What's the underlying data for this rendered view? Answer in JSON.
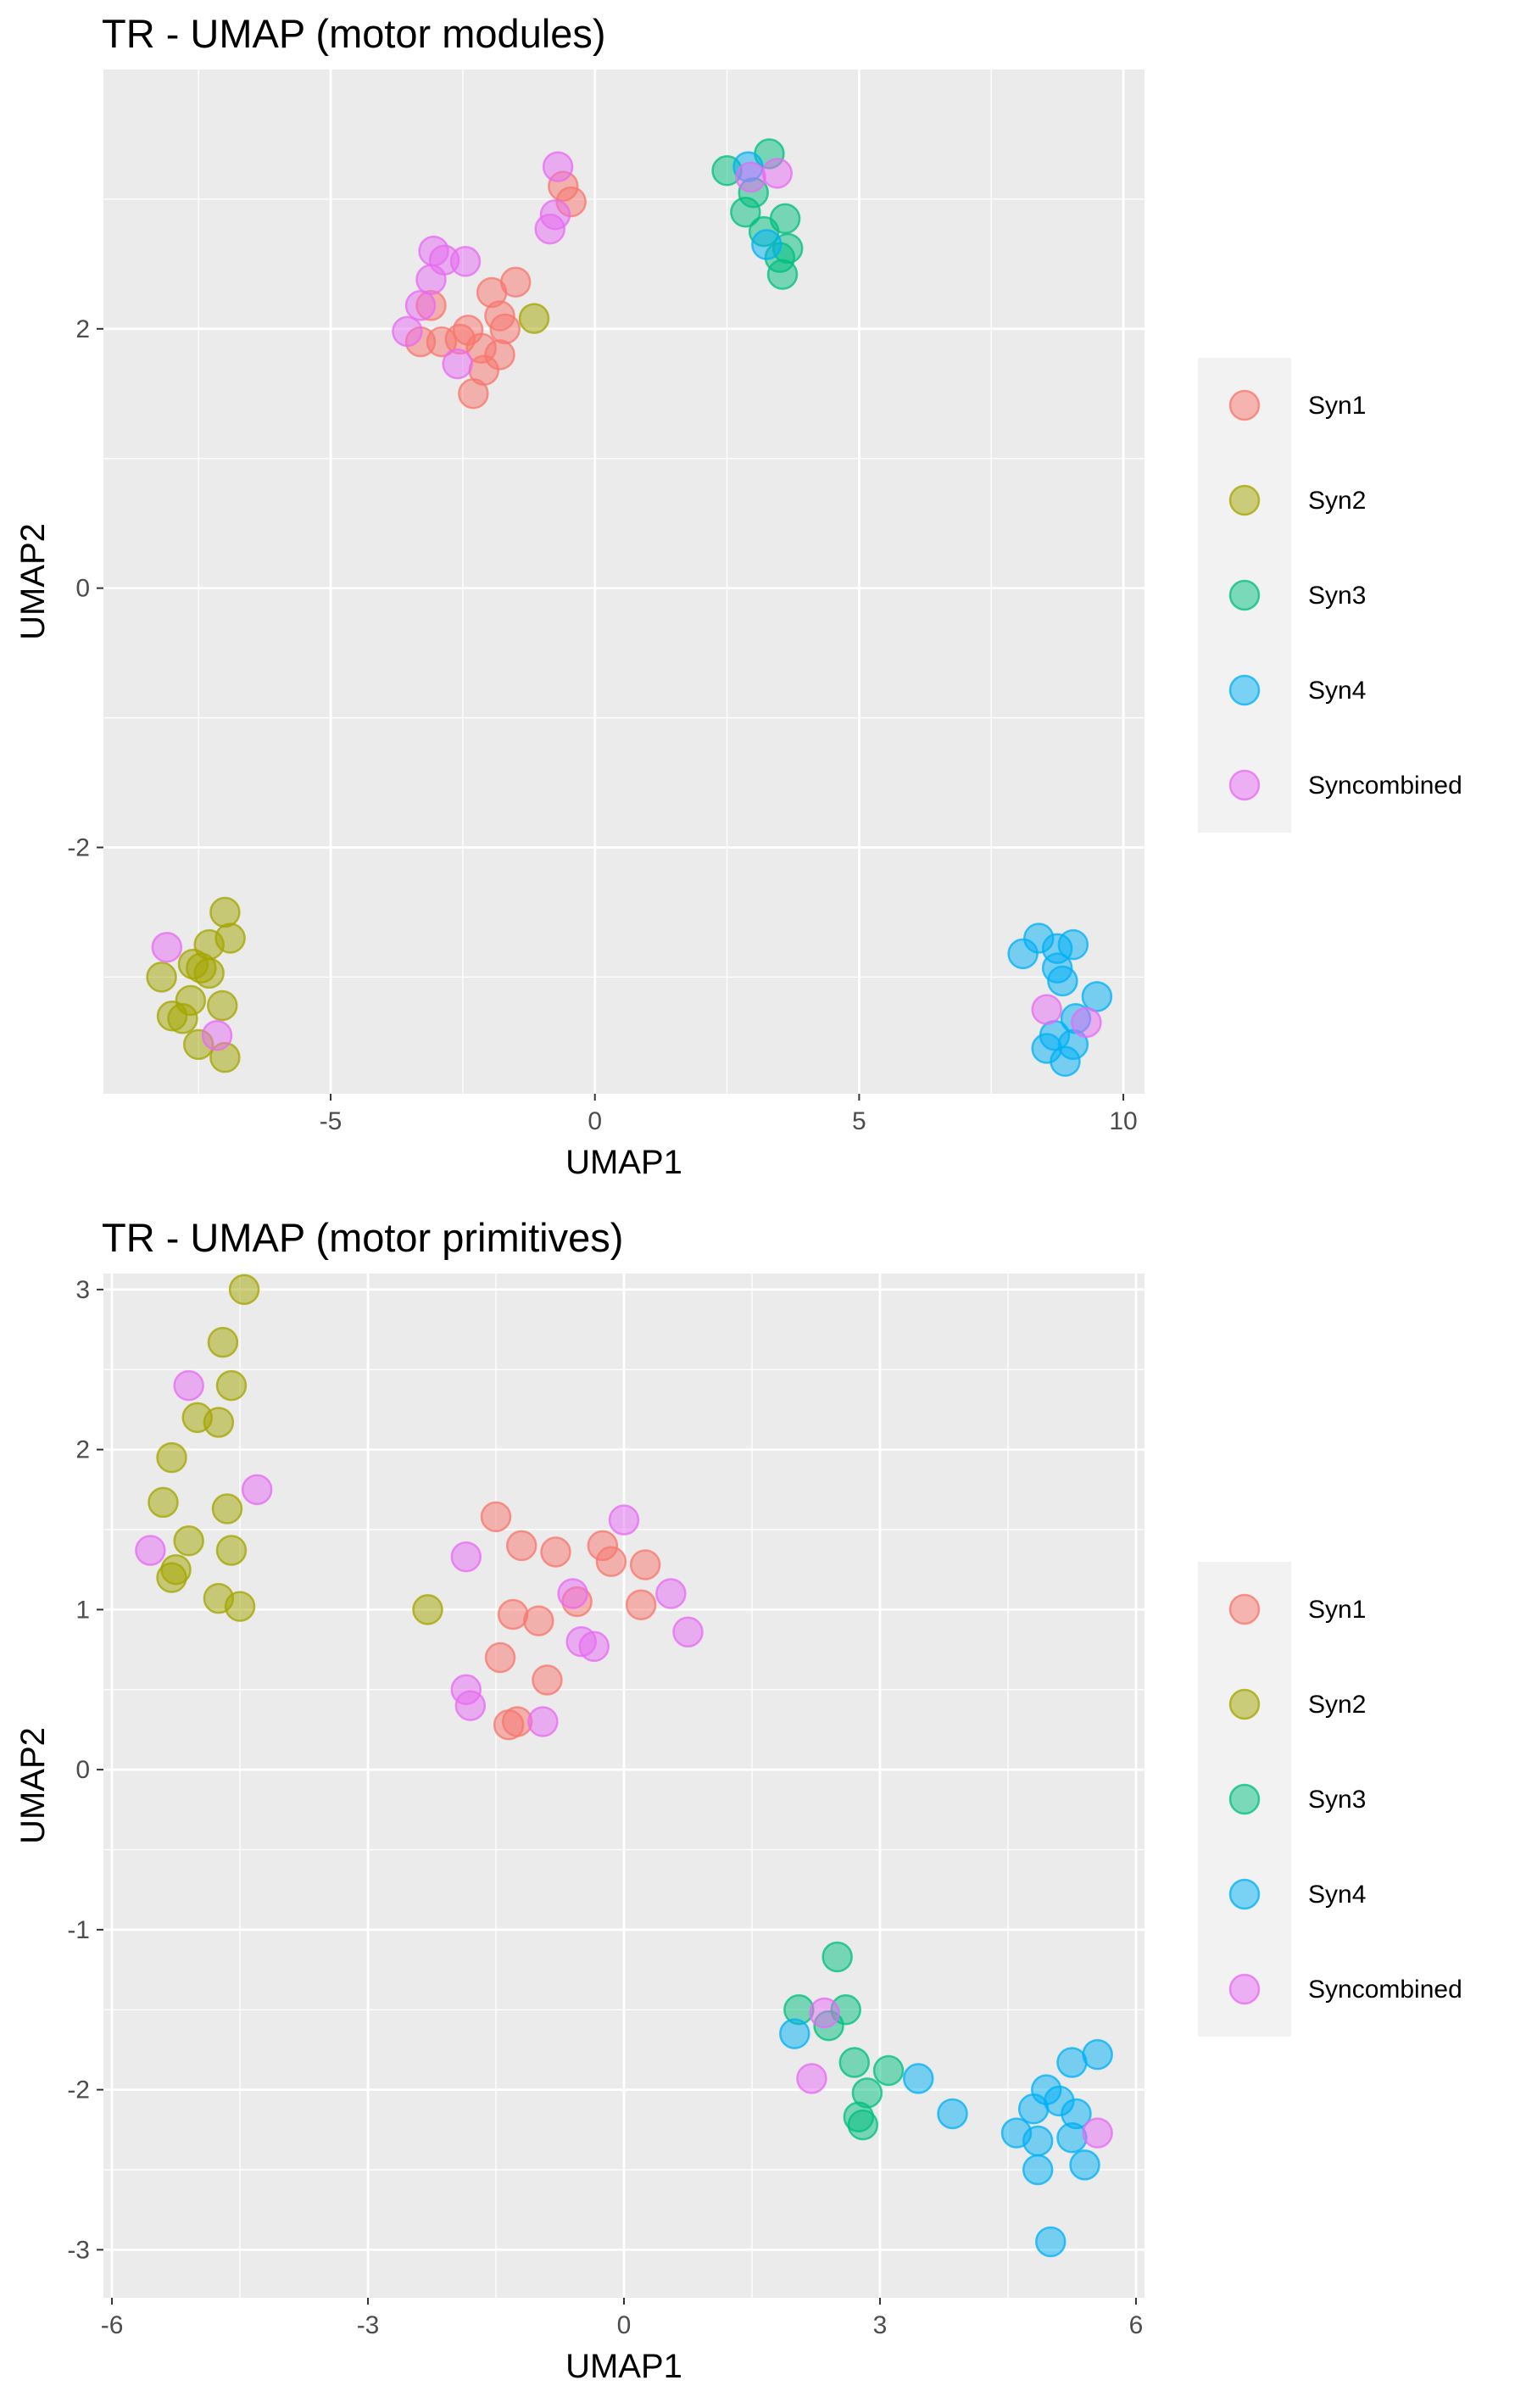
{
  "chart_data": [
    {
      "type": "scatter",
      "title": "TR - UMAP (motor modules)",
      "xlabel": "UMAP1",
      "ylabel": "UMAP2",
      "xlim": [
        -9.3,
        10.4
      ],
      "ylim": [
        -3.9,
        4.0
      ],
      "xticks": [
        -5,
        0,
        5,
        10
      ],
      "yticks": [
        -2,
        0,
        2
      ],
      "xtick_labels": [
        "-5",
        "0",
        "5",
        "10"
      ],
      "ytick_labels": [
        "-2",
        "0",
        "2"
      ],
      "grid": true,
      "legend_position": "right",
      "series": [
        {
          "name": "Syn1",
          "color": "#F8766D",
          "points": [
            [
              -0.45,
              2.98
            ],
            [
              -0.6,
              3.1
            ],
            [
              -1.5,
              2.36
            ],
            [
              -1.95,
              2.28
            ],
            [
              -1.8,
              2.1
            ],
            [
              -1.7,
              2.0
            ],
            [
              -2.4,
              1.99
            ],
            [
              -2.55,
              1.92
            ],
            [
              -2.9,
              1.9
            ],
            [
              -3.3,
              1.9
            ],
            [
              -2.15,
              1.85
            ],
            [
              -1.8,
              1.8
            ],
            [
              -2.1,
              1.68
            ],
            [
              -2.3,
              1.5
            ],
            [
              -3.1,
              2.18
            ]
          ]
        },
        {
          "name": "Syn2",
          "color": "#A3A500",
          "points": [
            [
              -1.15,
              2.08
            ],
            [
              -7.0,
              -2.5
            ],
            [
              -6.9,
              -2.7
            ],
            [
              -7.3,
              -2.75
            ],
            [
              -7.6,
              -2.9
            ],
            [
              -7.3,
              -2.97
            ],
            [
              -7.45,
              -2.93
            ],
            [
              -8.2,
              -3.0
            ],
            [
              -7.05,
              -3.22
            ],
            [
              -7.65,
              -3.18
            ],
            [
              -8.0,
              -3.3
            ],
            [
              -7.8,
              -3.32
            ],
            [
              -7.5,
              -3.52
            ],
            [
              -7.0,
              -3.62
            ]
          ]
        },
        {
          "name": "Syn3",
          "color": "#00BF7D",
          "points": [
            [
              2.5,
              3.22
            ],
            [
              3.3,
              3.35
            ],
            [
              3.0,
              3.05
            ],
            [
              2.85,
              2.9
            ],
            [
              3.6,
              2.85
            ],
            [
              3.2,
              2.75
            ],
            [
              3.65,
              2.62
            ],
            [
              3.5,
              2.55
            ],
            [
              3.55,
              2.42
            ]
          ]
        },
        {
          "name": "Syn4",
          "color": "#00B0F6",
          "points": [
            [
              2.9,
              3.25
            ],
            [
              3.25,
              2.65
            ],
            [
              8.4,
              -2.7
            ],
            [
              8.1,
              -2.82
            ],
            [
              9.05,
              -2.75
            ],
            [
              8.75,
              -2.78
            ],
            [
              8.75,
              -2.93
            ],
            [
              8.85,
              -3.03
            ],
            [
              9.5,
              -3.15
            ],
            [
              9.1,
              -3.32
            ],
            [
              8.7,
              -3.45
            ],
            [
              9.05,
              -3.52
            ],
            [
              8.55,
              -3.55
            ],
            [
              8.9,
              -3.65
            ]
          ]
        },
        {
          "name": "Syncombined",
          "color": "#E76BF3",
          "points": [
            [
              -0.7,
              3.25
            ],
            [
              -0.75,
              2.88
            ],
            [
              -0.85,
              2.77
            ],
            [
              -3.05,
              2.6
            ],
            [
              -2.85,
              2.53
            ],
            [
              -2.45,
              2.52
            ],
            [
              -3.1,
              2.38
            ],
            [
              -3.3,
              2.18
            ],
            [
              -3.55,
              1.98
            ],
            [
              -2.6,
              1.73
            ],
            [
              2.95,
              3.17
            ],
            [
              3.45,
              3.2
            ],
            [
              -8.1,
              -2.77
            ],
            [
              -7.15,
              -3.45
            ],
            [
              8.55,
              -3.25
            ],
            [
              9.3,
              -3.35
            ]
          ]
        }
      ]
    },
    {
      "type": "scatter",
      "title": "TR - UMAP (motor primitives)",
      "xlabel": "UMAP1",
      "ylabel": "UMAP2",
      "xlim": [
        -6.1,
        6.1
      ],
      "ylim": [
        -3.3,
        3.1
      ],
      "xticks": [
        -6,
        -3,
        0,
        3,
        6
      ],
      "yticks": [
        -3,
        -2,
        -1,
        0,
        1,
        2,
        3
      ],
      "xtick_labels": [
        "-6",
        "-3",
        "0",
        "3",
        "6"
      ],
      "ytick_labels": [
        "-3",
        "-2",
        "-1",
        "0",
        "1",
        "2",
        "3"
      ],
      "grid": true,
      "legend_position": "right",
      "series": [
        {
          "name": "Syn1",
          "color": "#F8766D",
          "points": [
            [
              -1.5,
              1.58
            ],
            [
              -1.2,
              1.4
            ],
            [
              -0.8,
              1.36
            ],
            [
              -0.25,
              1.4
            ],
            [
              -0.15,
              1.3
            ],
            [
              0.25,
              1.28
            ],
            [
              -0.55,
              1.05
            ],
            [
              -1.3,
              0.97
            ],
            [
              -1.0,
              0.93
            ],
            [
              0.2,
              1.03
            ],
            [
              -1.45,
              0.7
            ],
            [
              -0.9,
              0.56
            ],
            [
              -1.35,
              0.28
            ],
            [
              -1.25,
              0.3
            ]
          ]
        },
        {
          "name": "Syn2",
          "color": "#A3A500",
          "points": [
            [
              -4.45,
              3.0
            ],
            [
              -4.7,
              2.67
            ],
            [
              -4.6,
              2.4
            ],
            [
              -4.75,
              2.17
            ],
            [
              -5.0,
              2.2
            ],
            [
              -5.3,
              1.95
            ],
            [
              -5.4,
              1.67
            ],
            [
              -4.65,
              1.63
            ],
            [
              -5.1,
              1.43
            ],
            [
              -4.6,
              1.37
            ],
            [
              -5.25,
              1.25
            ],
            [
              -5.3,
              1.2
            ],
            [
              -4.75,
              1.07
            ],
            [
              -4.5,
              1.02
            ],
            [
              -2.3,
              1.0
            ]
          ]
        },
        {
          "name": "Syn3",
          "color": "#00BF7D",
          "points": [
            [
              2.5,
              -1.17
            ],
            [
              2.05,
              -1.5
            ],
            [
              2.6,
              -1.5
            ],
            [
              2.4,
              -1.6
            ],
            [
              2.7,
              -1.83
            ],
            [
              3.1,
              -1.88
            ],
            [
              2.85,
              -2.02
            ],
            [
              2.75,
              -2.17
            ],
            [
              2.8,
              -2.22
            ]
          ]
        },
        {
          "name": "Syn4",
          "color": "#00B0F6",
          "points": [
            [
              2.0,
              -1.65
            ],
            [
              3.45,
              -1.93
            ],
            [
              3.85,
              -2.15
            ],
            [
              5.55,
              -1.78
            ],
            [
              5.25,
              -1.83
            ],
            [
              4.95,
              -2.0
            ],
            [
              5.1,
              -2.07
            ],
            [
              4.8,
              -2.12
            ],
            [
              5.3,
              -2.15
            ],
            [
              4.6,
              -2.27
            ],
            [
              5.25,
              -2.3
            ],
            [
              4.85,
              -2.32
            ],
            [
              5.4,
              -2.47
            ],
            [
              4.85,
              -2.5
            ],
            [
              5.0,
              -2.95
            ]
          ]
        },
        {
          "name": "Syncombined",
          "color": "#E76BF3",
          "points": [
            [
              -5.1,
              2.4
            ],
            [
              -4.3,
              1.75
            ],
            [
              -5.55,
              1.37
            ],
            [
              -1.85,
              1.33
            ],
            [
              0.0,
              1.56
            ],
            [
              0.55,
              1.1
            ],
            [
              -0.6,
              1.1
            ],
            [
              0.75,
              0.86
            ],
            [
              -0.5,
              0.8
            ],
            [
              -0.35,
              0.77
            ],
            [
              -1.85,
              0.5
            ],
            [
              -1.8,
              0.4
            ],
            [
              -0.95,
              0.3
            ],
            [
              2.35,
              -1.52
            ],
            [
              2.2,
              -1.93
            ],
            [
              5.55,
              -2.27
            ]
          ]
        }
      ]
    }
  ]
}
